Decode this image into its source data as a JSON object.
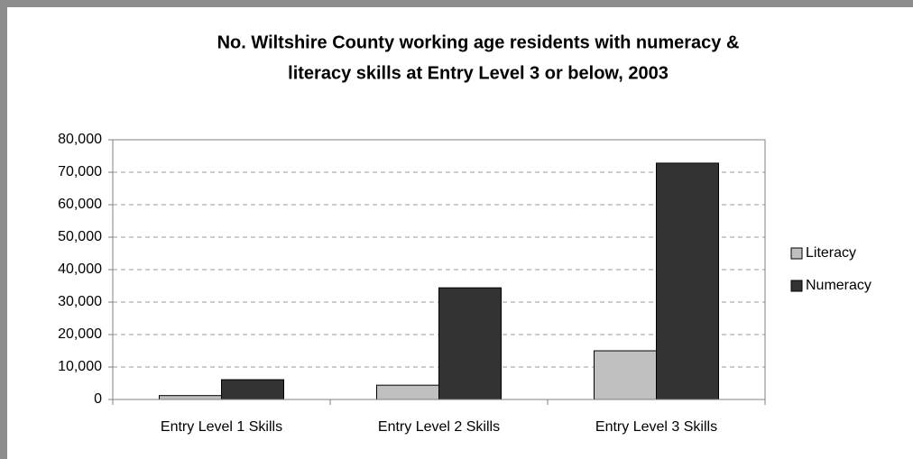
{
  "chart_data": {
    "type": "bar",
    "title": [
      "No. Wiltshire County working age residents with numeracy &",
      "literacy skills at Entry Level 3 or below, 2003"
    ],
    "categories": [
      "Entry Level 1 Skills",
      "Entry Level 2 Skills",
      "Entry Level 3 Skills"
    ],
    "series": [
      {
        "name": "Literacy",
        "color": "#c0c0c0",
        "values": [
          1200,
          4400,
          15000
        ]
      },
      {
        "name": "Numeracy",
        "color": "#333333",
        "values": [
          6100,
          34400,
          72800
        ]
      }
    ],
    "ylim": [
      0,
      80000
    ],
    "yticks": [
      0,
      {
        "value": 10000,
        "label": "10,000"
      },
      {
        "value": 20000,
        "label": "20,000"
      },
      {
        "value": 30000,
        "label": "30,000"
      },
      {
        "value": 40000,
        "label": "40,000"
      },
      {
        "value": 50000,
        "label": "50,000"
      },
      {
        "value": 60000,
        "label": "60,000"
      },
      {
        "value": 70000,
        "label": "70,000"
      },
      {
        "value": 80000,
        "label": "80,000"
      }
    ],
    "grid": true,
    "legend": "right"
  }
}
